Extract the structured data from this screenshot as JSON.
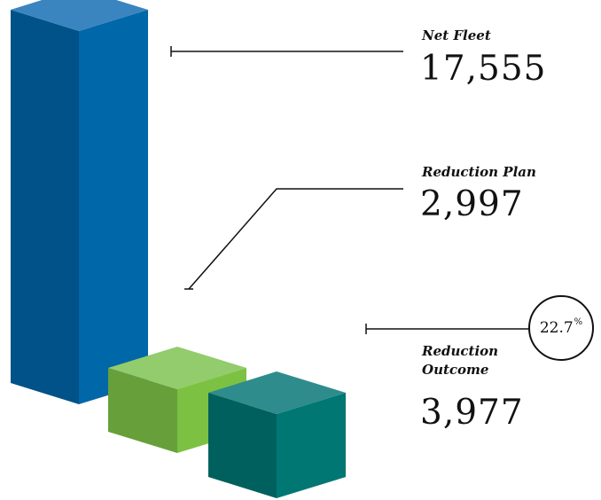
{
  "chart_data": {
    "type": "bar",
    "title": "",
    "categories": [
      "Net Fleet",
      "Reduction Plan",
      "Reduction Outcome"
    ],
    "values": [
      17555,
      2997,
      3977
    ],
    "display_values": [
      "17,555",
      "2,997",
      "3,977"
    ],
    "ylim": [
      0,
      17555
    ],
    "grid": false,
    "legend": "none",
    "outcome_percent": {
      "value": "22.7",
      "unit": "%"
    },
    "colors": {
      "net_fleet": {
        "top": "#3a85c0",
        "left": "#005288",
        "right": "#0067a8"
      },
      "reduction_plan": {
        "top": "#92cc6c",
        "left": "#67a03a",
        "right": "#7dc142"
      },
      "reduction_outcome": {
        "top": "#2f8c8c",
        "left": "#00605e",
        "right": "#007773"
      }
    }
  }
}
